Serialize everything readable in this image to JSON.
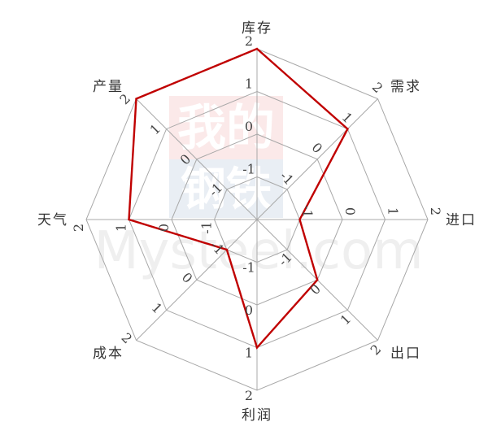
{
  "chart_data": {
    "type": "radar",
    "title": "",
    "categories": [
      "库存",
      "需求",
      "进口",
      "出口",
      "利润",
      "成本",
      "天气",
      "产量"
    ],
    "series": [
      {
        "values": [
          2,
          1,
          -1,
          0,
          1,
          -1,
          1,
          2
        ]
      }
    ],
    "rlim": [
      -2,
      2
    ],
    "ticks": [
      -1,
      0,
      1,
      2
    ],
    "grid": true,
    "legend": "none",
    "line_color": "#c00000",
    "grid_color": "#a8a8a8"
  },
  "watermark": {
    "text_top": "我的",
    "text_mid": "钢铁",
    "text_bottom": "Mysteel.com",
    "color_red": "#e35a5a",
    "color_blue": "#5a7fb0"
  }
}
